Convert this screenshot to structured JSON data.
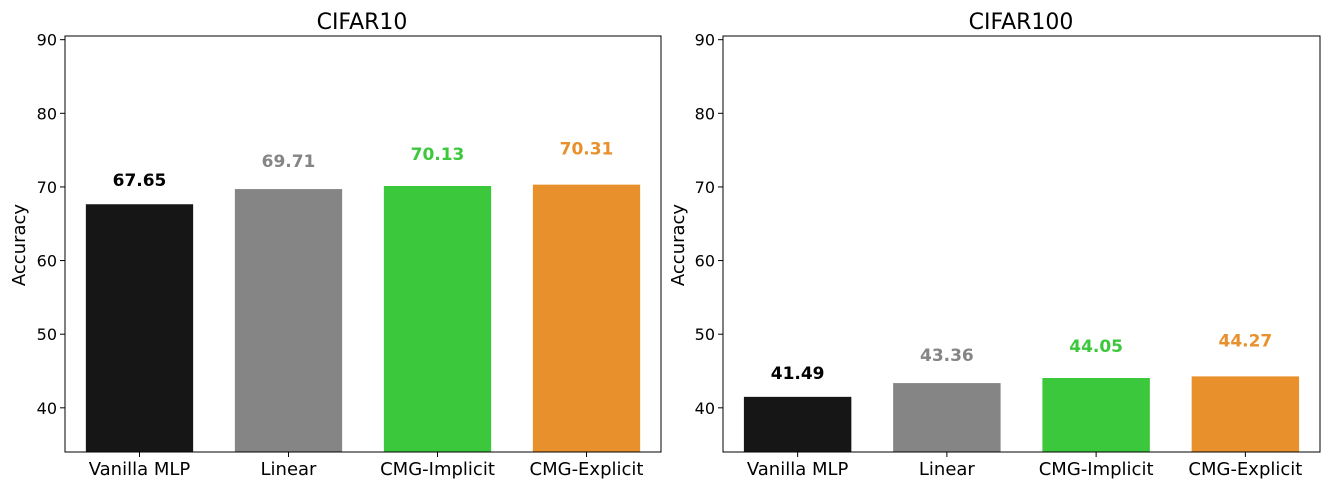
{
  "chart_data": [
    {
      "type": "bar",
      "title": "CIFAR10",
      "xlabel": "",
      "ylabel": "Accuracy",
      "categories": [
        "Vanilla MLP",
        "Linear",
        "CMG-Implicit",
        "CMG-Explicit"
      ],
      "values": [
        67.65,
        69.71,
        70.13,
        70.31
      ],
      "labels": [
        "67.65",
        "69.71",
        "70.13",
        "70.31"
      ],
      "colors": [
        "#161616",
        "#858585",
        "#3cc83c",
        "#e8912c"
      ],
      "label_colors": [
        "#000000",
        "#858585",
        "#3cc83c",
        "#e8912c"
      ],
      "ylim": [
        34,
        90.5
      ],
      "yticks": [
        40,
        50,
        60,
        70,
        80,
        90
      ],
      "grid": false,
      "legend": "none"
    },
    {
      "type": "bar",
      "title": "CIFAR100",
      "xlabel": "",
      "ylabel": "Accuracy",
      "categories": [
        "Vanilla MLP",
        "Linear",
        "CMG-Implicit",
        "CMG-Explicit"
      ],
      "values": [
        41.49,
        43.36,
        44.05,
        44.27
      ],
      "labels": [
        "41.49",
        "43.36",
        "44.05",
        "44.27"
      ],
      "colors": [
        "#161616",
        "#858585",
        "#3cc83c",
        "#e8912c"
      ],
      "label_colors": [
        "#000000",
        "#858585",
        "#3cc83c",
        "#e8912c"
      ],
      "ylim": [
        34,
        90.5
      ],
      "yticks": [
        40,
        50,
        60,
        70,
        80,
        90
      ],
      "grid": false,
      "legend": "none"
    }
  ]
}
